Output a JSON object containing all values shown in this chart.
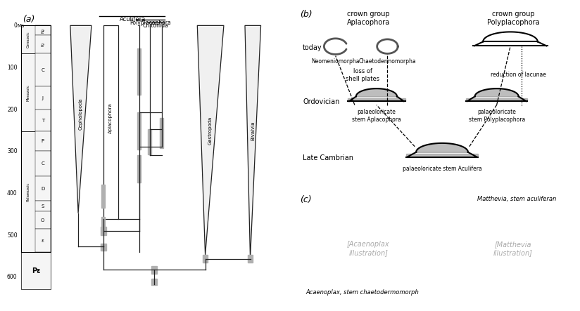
{
  "fig_width": 8.0,
  "fig_height": 4.41,
  "bg_color": "#ffffff",
  "panel_a_label": "(a)",
  "panel_b_label": "(b)",
  "panel_c_label": "(c)",
  "era_bounds": [
    [
      "Cenozoic",
      0,
      66
    ],
    [
      "Mesozoic",
      66,
      252
    ],
    [
      "Palaeozoic",
      252,
      541
    ]
  ],
  "ceno_periods": [
    [
      "Ng",
      0,
      23
    ],
    [
      "Pg",
      23,
      66
    ]
  ],
  "meso_periods": [
    [
      "C",
      66,
      145
    ],
    [
      "J",
      145,
      201
    ],
    [
      "T",
      201,
      252
    ]
  ],
  "paleo_periods": [
    [
      "P",
      252,
      299
    ],
    [
      "C",
      299,
      359
    ],
    [
      "D",
      359,
      419
    ],
    [
      "S",
      419,
      444
    ],
    [
      "O",
      444,
      485
    ],
    [
      "ε",
      485,
      541
    ]
  ],
  "precambrian": [
    "Pε",
    541,
    630
  ],
  "ytick_vals": [
    0,
    100,
    200,
    300,
    400,
    500,
    600
  ],
  "ymax": 650,
  "line_color": "#222222",
  "gray_bar_color": "#b0b0b0",
  "wedge_face_color": "#f0f0f0",
  "title_aculifera": "Aculifera",
  "title_polyplacophora": "Polyplacophora",
  "title_chitonida": "Chitonida",
  "taxon_cephalopoda": "Cephalopoda",
  "taxon_aplacophora": "Aplacophora",
  "taxon_gastropoda": "Gastropoda",
  "taxon_bivalvia": "Bivalvia",
  "label_today": "today",
  "label_ordovician": "Ordovician",
  "label_latecambrian": "Late Cambrian",
  "label_crown_aplac": "crown group\nAplacophora",
  "label_crown_poly": "crown group\nPolyplacophora",
  "label_neo": "Neomeniomorpha",
  "label_chaeto": "Chaetodermomorpha",
  "label_loss": "loss of\nshell plates",
  "label_reduction": "reduction of lacunae",
  "label_stem_aplac": "palaeoloricate\nstem Aplacophora",
  "label_stem_poly": "palaeoloricate\nstem Polyplacophora",
  "label_stem_acul": "palaeoloricate stem Aculifera",
  "label_acaenoplax": "Acaenoplax, stem chaetodermomorph",
  "label_matthevia": "Matthevia, stem aculiferan"
}
